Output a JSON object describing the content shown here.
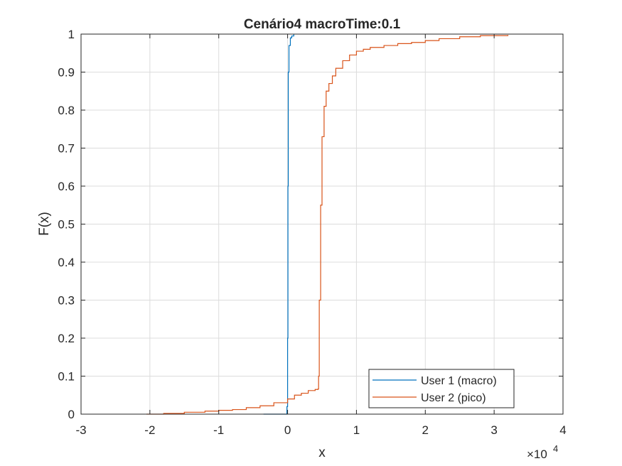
{
  "chart_data": {
    "type": "line",
    "title": "Cenário4 macroTime:0.1",
    "xlabel": "x",
    "ylabel": "F(x)",
    "x_exponent_base": "×10",
    "x_exponent_power": "4",
    "xlim": [
      -3,
      4
    ],
    "ylim": [
      0,
      1
    ],
    "xticks": [
      -3,
      -2,
      -1,
      0,
      1,
      2,
      3,
      4
    ],
    "yticks": [
      0,
      0.1,
      0.2,
      0.3,
      0.4,
      0.5,
      0.6,
      0.7,
      0.8,
      0.9,
      1
    ],
    "xtick_labels": [
      "-3",
      "-2",
      "-1",
      "0",
      "1",
      "2",
      "3",
      "4"
    ],
    "ytick_labels": [
      "0",
      "0.1",
      "0.2",
      "0.3",
      "0.4",
      "0.5",
      "0.6",
      "0.7",
      "0.8",
      "0.9",
      "1"
    ],
    "grid": true,
    "legend_position": "bottom-right",
    "series": [
      {
        "name": "User 1 (macro)",
        "color": "#0072BD",
        "x": [
          -0.35,
          -0.03,
          -0.01,
          0.0,
          0.005,
          0.01,
          0.02,
          0.04,
          0.06,
          0.09
        ],
        "y": [
          0.0,
          0.0,
          0.02,
          0.2,
          0.6,
          0.9,
          0.97,
          0.99,
          0.995,
          1.0
        ]
      },
      {
        "name": "User 2 (pico)",
        "color": "#D95319",
        "x": [
          -2.05,
          -1.8,
          -1.5,
          -1.2,
          -1.0,
          -0.8,
          -0.6,
          -0.4,
          -0.2,
          0.0,
          0.1,
          0.2,
          0.3,
          0.4,
          0.44,
          0.45,
          0.46,
          0.48,
          0.5,
          0.53,
          0.56,
          0.6,
          0.65,
          0.7,
          0.8,
          0.9,
          1.0,
          1.1,
          1.2,
          1.4,
          1.6,
          1.8,
          2.0,
          2.2,
          2.5,
          2.8,
          3.2
        ],
        "y": [
          0.0,
          0.002,
          0.005,
          0.008,
          0.01,
          0.012,
          0.017,
          0.022,
          0.03,
          0.04,
          0.05,
          0.055,
          0.062,
          0.065,
          0.066,
          0.1,
          0.3,
          0.55,
          0.73,
          0.81,
          0.85,
          0.87,
          0.89,
          0.91,
          0.93,
          0.945,
          0.955,
          0.96,
          0.965,
          0.97,
          0.975,
          0.978,
          0.983,
          0.988,
          0.993,
          0.996,
          0.998
        ]
      }
    ]
  }
}
